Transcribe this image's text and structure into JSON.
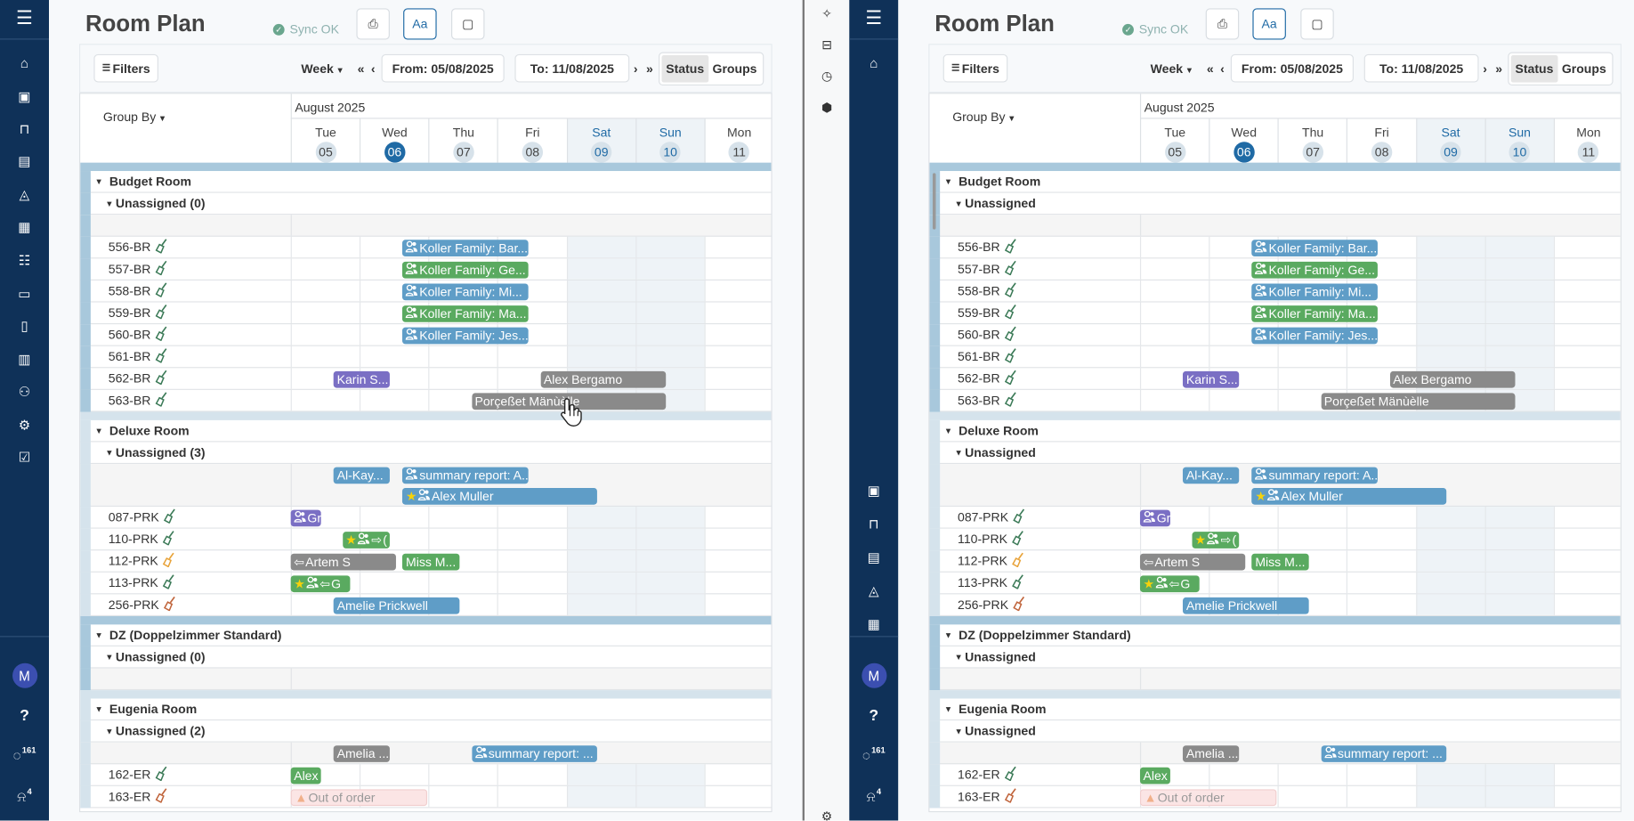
{
  "colors": {
    "sidebar": "#0f3158",
    "accent": "#1f6aa5",
    "blue": "#5f9dc7",
    "green": "#5aaa60",
    "purple": "#7a6fc4",
    "gray": "#8a8a8a",
    "band_dark": "#a8c8dc",
    "band_light": "#d5e3ec",
    "broom_clean": "#3b7a57",
    "broom_orange": "#e8a33a",
    "broom_dirty": "#c0643b"
  },
  "middle_strip": {
    "icons": [
      "sparkle-icon",
      "computer-icon",
      "clock-icon",
      "hex-badge-icon"
    ],
    "bottom_icon": "gear-icon"
  },
  "panels": [
    {
      "title": "Room Plan",
      "sync": "Sync OK",
      "buttons": {
        "print": "print-icon",
        "font": "Aa",
        "note": "note-icon"
      },
      "toolbar": {
        "filters": "Filters",
        "week": "Week",
        "from": "From: 05/08/2025",
        "to": "To: 11/08/2025",
        "status": "Status",
        "groups": "Groups"
      },
      "sidebar": {
        "top": [
          "menu-icon",
          "bell-icon",
          "calendar-star-icon",
          "store-icon",
          "cash-register-icon",
          "money-bag-icon",
          "calendar-icon",
          "list-icon",
          "chat-icon",
          "contacts-icon",
          "chart-icon",
          "people-icon",
          "gear-icon",
          "checkbox-icon"
        ],
        "avatar": "M",
        "messages": "161",
        "notifications": "4"
      },
      "unassigned_labels": [
        "Unassigned (0)",
        "Unassigned (3)",
        "Unassigned (0)",
        "Unassigned (2)"
      ],
      "cursor": true
    },
    {
      "title": "Room Plan",
      "sync": "Sync OK",
      "buttons": {
        "print": "print-icon",
        "font": "Aa",
        "note": "note-icon"
      },
      "toolbar": {
        "filters": "Filters",
        "week": "Week",
        "from": "From: 05/08/2025",
        "to": "To: 11/08/2025",
        "status": "Status",
        "groups": "Groups"
      },
      "sidebar": {
        "top": [
          "menu-icon",
          "bell-icon"
        ],
        "bottom": [
          "calendar-star-icon",
          "store-icon",
          "cash-register-icon",
          "money-bag-icon",
          "calendar-icon"
        ],
        "avatar": "M",
        "messages": "161",
        "notifications": "4"
      },
      "unassigned_labels": [
        "Unassigned",
        "Unassigned",
        "Unassigned",
        "Unassigned"
      ],
      "cursor": false
    }
  ],
  "schedule": {
    "group_by": "Group By",
    "month": "August 2025",
    "days": [
      {
        "dow": "Tue",
        "date": "05",
        "day": 5,
        "weekend": false,
        "today": false
      },
      {
        "dow": "Wed",
        "date": "06",
        "day": 6,
        "weekend": false,
        "today": true
      },
      {
        "dow": "Thu",
        "date": "07",
        "day": 7,
        "weekend": false,
        "today": false
      },
      {
        "dow": "Fri",
        "date": "08",
        "day": 8,
        "weekend": false,
        "today": false
      },
      {
        "dow": "Sat",
        "date": "09",
        "day": 9,
        "weekend": true,
        "today": false
      },
      {
        "dow": "Sun",
        "date": "10",
        "day": 10,
        "weekend": true,
        "today": false
      },
      {
        "dow": "Mon",
        "date": "11",
        "day": 11,
        "weekend": false,
        "today": false
      }
    ],
    "groups": [
      {
        "name": "Budget Room",
        "lane_lines": 1,
        "lane": [],
        "rooms": [
          {
            "name": "556-BR",
            "broom": "clean",
            "bookings": [
              {
                "label": "Koller Family: Bar...",
                "color": "blue",
                "icons": [
                  "guest"
                ],
                "from": "08-06 15:00",
                "to": "08-08 11:00"
              }
            ]
          },
          {
            "name": "557-BR",
            "broom": "clean",
            "bookings": [
              {
                "label": "Koller Family: Ge...",
                "color": "green",
                "icons": [
                  "guest"
                ],
                "from": "08-06 15:00",
                "to": "08-08 11:00"
              }
            ]
          },
          {
            "name": "558-BR",
            "broom": "clean",
            "bookings": [
              {
                "label": "Koller Family: Mi...",
                "color": "blue",
                "icons": [
                  "guest"
                ],
                "from": "08-06 15:00",
                "to": "08-08 11:00"
              }
            ]
          },
          {
            "name": "559-BR",
            "broom": "clean",
            "bookings": [
              {
                "label": "Koller Family: Ma...",
                "color": "green",
                "icons": [
                  "guest"
                ],
                "from": "08-06 15:00",
                "to": "08-08 11:00"
              }
            ]
          },
          {
            "name": "560-BR",
            "broom": "clean",
            "bookings": [
              {
                "label": "Koller Family: Jes...",
                "color": "blue",
                "icons": [
                  "guest"
                ],
                "from": "08-06 15:00",
                "to": "08-08 11:00"
              }
            ]
          },
          {
            "name": "561-BR",
            "broom": "clean",
            "bookings": []
          },
          {
            "name": "562-BR",
            "broom": "clean",
            "bookings": [
              {
                "label": "Karin S...",
                "color": "purple",
                "icons": [],
                "from": "08-05 15:00",
                "to": "08-06 11:00"
              },
              {
                "label": "Alex Bergamo",
                "color": "gray",
                "icons": [],
                "from": "08-08 15:00",
                "to": "08-10 11:00"
              }
            ]
          },
          {
            "name": "563-BR",
            "broom": "clean",
            "bookings": [
              {
                "label": "Porçeßet Mänùèlle",
                "color": "gray",
                "icons": [],
                "from": "08-07 15:00",
                "to": "08-10 11:00"
              }
            ]
          }
        ]
      },
      {
        "name": "Deluxe Room",
        "lane_lines": 2,
        "lane": [
          {
            "label": "Al-Kay...",
            "color": "blue",
            "icons": [],
            "from": "08-05 15:00",
            "to": "08-06 11:00",
            "line": 1
          },
          {
            "label": "summary report: A...",
            "color": "blue",
            "icons": [
              "guest"
            ],
            "from": "08-06 15:00",
            "to": "08-08 11:00",
            "line": 1
          },
          {
            "label": "Alex Muller",
            "color": "blue",
            "icons": [
              "star",
              "guest"
            ],
            "from": "08-06 15:00",
            "to": "08-09 11:00",
            "line": 2
          }
        ],
        "rooms": [
          {
            "name": "087-PRK",
            "broom": "clean",
            "bookings": [
              {
                "label": "Gr",
                "color": "purple",
                "icons": [
                  "guest"
                ],
                "from": "08-04 15:00",
                "to": "08-05 11:00"
              }
            ]
          },
          {
            "name": "110-PRK",
            "broom": "clean",
            "bookings": [
              {
                "label": "(",
                "color": "green",
                "icons": [
                  "star",
                  "guest",
                  "arrow-right"
                ],
                "from": "08-05 18:00",
                "to": "08-06 11:00"
              }
            ]
          },
          {
            "name": "112-PRK",
            "broom": "orange",
            "bookings": [
              {
                "label": "Artem S",
                "color": "gray",
                "icons": [
                  "arrow-left"
                ],
                "from": "08-04 15:00",
                "to": "08-06 13:00"
              },
              {
                "label": "Miss M...",
                "color": "green",
                "icons": [],
                "from": "08-06 15:00",
                "to": "08-07 11:00"
              }
            ]
          },
          {
            "name": "113-PRK",
            "broom": "clean",
            "bookings": [
              {
                "label": "G",
                "color": "green",
                "icons": [
                  "star",
                  "guest",
                  "arrow-left"
                ],
                "from": "08-04 15:00",
                "to": "08-05 21:00"
              }
            ]
          },
          {
            "name": "256-PRK",
            "broom": "dirty",
            "bookings": [
              {
                "label": "Amelie Prickwell",
                "color": "blue",
                "icons": [],
                "from": "08-05 15:00",
                "to": "08-07 11:00"
              }
            ]
          }
        ]
      },
      {
        "name": "DZ (Doppelzimmer Standard)",
        "lane_lines": 1,
        "lane": [],
        "rooms": []
      },
      {
        "name": "Eugenia Room",
        "lane_lines": 1,
        "lane": [
          {
            "label": "Amelia ...",
            "color": "gray",
            "icons": [],
            "from": "08-05 15:00",
            "to": "08-06 11:00",
            "line": 1
          },
          {
            "label": "summary report: ...",
            "color": "blue",
            "icons": [
              "guest"
            ],
            "from": "08-07 15:00",
            "to": "08-09 11:00",
            "line": 1
          }
        ],
        "rooms": [
          {
            "name": "162-ER",
            "broom": "clean",
            "bookings": [
              {
                "label": "Alex",
                "color": "green",
                "icons": [],
                "from": "08-04 15:00",
                "to": "08-05 11:00"
              }
            ]
          },
          {
            "name": "163-ER",
            "broom": "dirty",
            "bookings": [
              {
                "label": "Out of order",
                "color": "out-of-order",
                "icons": [
                  "warning"
                ],
                "from": "08-05 00:00",
                "to": "08-07 00:00"
              }
            ]
          }
        ]
      }
    ]
  }
}
